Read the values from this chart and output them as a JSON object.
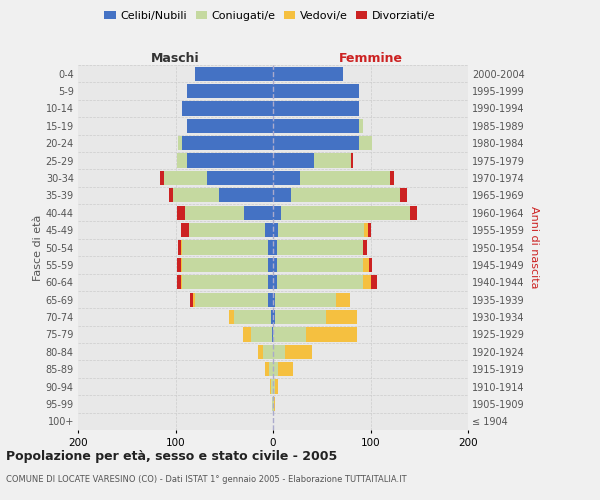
{
  "age_groups": [
    "100+",
    "95-99",
    "90-94",
    "85-89",
    "80-84",
    "75-79",
    "70-74",
    "65-69",
    "60-64",
    "55-59",
    "50-54",
    "45-49",
    "40-44",
    "35-39",
    "30-34",
    "25-29",
    "20-24",
    "15-19",
    "10-14",
    "5-9",
    "0-4"
  ],
  "birth_years": [
    "≤ 1904",
    "1905-1909",
    "1910-1914",
    "1915-1919",
    "1920-1924",
    "1925-1929",
    "1930-1934",
    "1935-1939",
    "1940-1944",
    "1945-1949",
    "1950-1954",
    "1955-1959",
    "1960-1964",
    "1965-1969",
    "1970-1974",
    "1975-1979",
    "1980-1984",
    "1985-1989",
    "1990-1994",
    "1995-1999",
    "2000-2004"
  ],
  "males": {
    "celibi": [
      0,
      0,
      0,
      0,
      0,
      1,
      2,
      5,
      5,
      5,
      5,
      8,
      30,
      55,
      68,
      88,
      93,
      88,
      93,
      88,
      80
    ],
    "coniugati": [
      0,
      1,
      2,
      4,
      10,
      22,
      38,
      75,
      88,
      88,
      88,
      78,
      60,
      48,
      44,
      10,
      4,
      0,
      0,
      0,
      0
    ],
    "vedovi": [
      0,
      0,
      1,
      4,
      5,
      8,
      5,
      2,
      1,
      1,
      1,
      0,
      0,
      0,
      0,
      0,
      0,
      0,
      0,
      0,
      0
    ],
    "divorziati": [
      0,
      0,
      0,
      0,
      0,
      0,
      0,
      3,
      4,
      4,
      3,
      8,
      8,
      4,
      4,
      0,
      0,
      0,
      0,
      0,
      0
    ]
  },
  "females": {
    "nubili": [
      0,
      0,
      0,
      0,
      0,
      0,
      2,
      2,
      4,
      4,
      4,
      5,
      8,
      18,
      28,
      42,
      88,
      88,
      88,
      88,
      72
    ],
    "coniugate": [
      0,
      1,
      2,
      5,
      12,
      34,
      52,
      63,
      88,
      88,
      88,
      88,
      132,
      112,
      92,
      38,
      14,
      4,
      0,
      0,
      0
    ],
    "vedove": [
      0,
      1,
      3,
      15,
      28,
      52,
      32,
      14,
      8,
      6,
      0,
      4,
      0,
      0,
      0,
      0,
      0,
      0,
      0,
      0,
      0
    ],
    "divorziate": [
      0,
      0,
      0,
      0,
      0,
      0,
      0,
      0,
      7,
      4,
      4,
      4,
      8,
      7,
      4,
      2,
      0,
      0,
      0,
      0,
      0
    ]
  },
  "colors": {
    "celibi": "#4472C4",
    "coniugati": "#C5D9A0",
    "vedovi": "#F5C040",
    "divorziati": "#CC2222"
  },
  "title": "Popolazione per età, sesso e stato civile - 2005",
  "subtitle": "COMUNE DI LOCATE VARESINO (CO) - Dati ISTAT 1° gennaio 2005 - Elaborazione TUTTAITALIA.IT",
  "xlabel_left": "Maschi",
  "xlabel_right": "Femmine",
  "ylabel_left": "Fasce di età",
  "ylabel_right": "Anni di nascita",
  "xlim": 200,
  "bg_color": "#f0f0f0",
  "plot_bg": "#e8e8e8"
}
